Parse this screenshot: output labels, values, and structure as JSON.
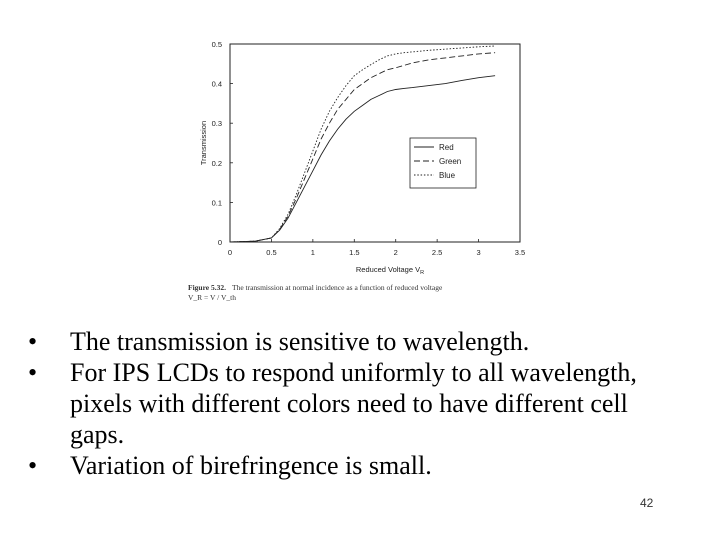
{
  "chart_data": {
    "type": "line",
    "xlabel": "Reduced Voltage V",
    "xlabel_subscript": "R",
    "ylabel": "Transmission",
    "xlim": [
      0,
      3.5
    ],
    "ylim": [
      0,
      0.5
    ],
    "x_ticks": [
      "0",
      "0.5",
      "1",
      "1.5",
      "2",
      "2.5",
      "3",
      "3.5"
    ],
    "y_ticks": [
      "0",
      "0.1",
      "0.2",
      "0.3",
      "0.4",
      "0.5"
    ],
    "legend_placement": "center-right",
    "grid": false,
    "series": [
      {
        "name": "Red",
        "style": "solid",
        "x": [
          0,
          0.3,
          0.5,
          0.6,
          0.7,
          0.8,
          0.9,
          1.0,
          1.1,
          1.2,
          1.3,
          1.4,
          1.5,
          1.6,
          1.7,
          1.8,
          1.9,
          2.0,
          2.1,
          2.2,
          2.4,
          2.6,
          2.8,
          3.0,
          3.2
        ],
        "y": [
          0,
          0.002,
          0.01,
          0.03,
          0.06,
          0.1,
          0.14,
          0.18,
          0.22,
          0.255,
          0.285,
          0.31,
          0.33,
          0.345,
          0.36,
          0.37,
          0.38,
          0.385,
          0.388,
          0.39,
          0.395,
          0.4,
          0.408,
          0.415,
          0.42
        ]
      },
      {
        "name": "Green",
        "style": "dashed",
        "x": [
          0,
          0.3,
          0.5,
          0.6,
          0.7,
          0.8,
          0.9,
          1.0,
          1.1,
          1.2,
          1.3,
          1.4,
          1.5,
          1.6,
          1.7,
          1.8,
          1.9,
          2.0,
          2.1,
          2.2,
          2.4,
          2.6,
          2.8,
          3.0,
          3.2
        ],
        "y": [
          0,
          0.002,
          0.01,
          0.032,
          0.065,
          0.11,
          0.16,
          0.21,
          0.26,
          0.3,
          0.335,
          0.36,
          0.385,
          0.4,
          0.415,
          0.425,
          0.435,
          0.44,
          0.446,
          0.452,
          0.46,
          0.465,
          0.47,
          0.475,
          0.478
        ]
      },
      {
        "name": "Blue",
        "style": "dotted",
        "x": [
          0,
          0.3,
          0.5,
          0.6,
          0.7,
          0.8,
          0.9,
          1.0,
          1.1,
          1.2,
          1.3,
          1.4,
          1.5,
          1.6,
          1.7,
          1.8,
          1.9,
          2.0,
          2.1,
          2.2,
          2.4,
          2.6,
          2.8,
          3.0,
          3.2
        ],
        "y": [
          0,
          0.002,
          0.01,
          0.034,
          0.07,
          0.12,
          0.175,
          0.23,
          0.285,
          0.33,
          0.365,
          0.395,
          0.42,
          0.435,
          0.448,
          0.46,
          0.47,
          0.475,
          0.478,
          0.48,
          0.484,
          0.487,
          0.49,
          0.493,
          0.495
        ]
      }
    ],
    "caption": {
      "label": "Figure 5.32.",
      "text": "The transmission at normal incidence as a function of reduced voltage",
      "line2": "V_R = V / V_th"
    }
  },
  "bullets": [
    "The transmission is sensitive to wavelength.",
    "For IPS LCDs to respond uniformly to all wavelength, pixels with different colors need to have different cell gaps.",
    "Variation of birefringence is small."
  ],
  "bullet_glyph": "•",
  "page_number": "42",
  "colors": {
    "line": "#222222",
    "text": "#000000"
  }
}
